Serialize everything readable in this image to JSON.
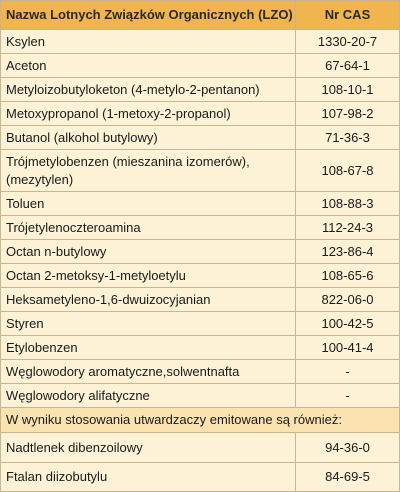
{
  "header": {
    "name": "Nazwa Lotnych Związków Organicznych (LZO)",
    "cas": "Nr CAS"
  },
  "rows": [
    {
      "name": "Ksylen",
      "cas": "1330-20-7"
    },
    {
      "name": "Aceton",
      "cas": "67-64-1"
    },
    {
      "name": "Metyloizobutyloketon (4-metylo-2-pentanon)",
      "cas": "108-10-1"
    },
    {
      "name": "Metoxypropanol (1-metoxy-2-propanol)",
      "cas": "107-98-2"
    },
    {
      "name": "Butanol (alkohol butylowy)",
      "cas": "71-36-3"
    },
    {
      "name": "Trójmetylobenzen (mieszanina izomerów), (mezytylen)",
      "cas": "108-67-8"
    },
    {
      "name": "Toluen",
      "cas": "108-88-3"
    },
    {
      "name": "Trójetylenoczteroamina",
      "cas": "112-24-3"
    },
    {
      "name": "Octan n-butylowy",
      "cas": "123-86-4"
    },
    {
      "name": "Octan 2-metoksy-1-metyloetylu",
      "cas": "108-65-6"
    },
    {
      "name": "Heksametyleno-1,6-dwuizocyjanian",
      "cas": "822-06-0"
    },
    {
      "name": "Styren",
      "cas": "100-42-5"
    },
    {
      "name": "Etylobenzen",
      "cas": "100-41-4"
    },
    {
      "name": "Węglowodory aromatyczne,solwentnafta",
      "cas": "-"
    },
    {
      "name": "Węglowodory alifatyczne",
      "cas": "-"
    }
  ],
  "section": "W wyniku stosowania utwardzaczy emitowane są również:",
  "rows2": [
    {
      "name": "Nadtlenek dibenzoilowy",
      "cas": "94-36-0"
    },
    {
      "name": "Ftalan diizobutylu",
      "cas": "84-69-5"
    }
  ],
  "colors": {
    "header_bg": "#f0b54e",
    "body_bg": "#fdf2d6",
    "section_bg": "#fae3b0",
    "border": "#c8b68f"
  }
}
